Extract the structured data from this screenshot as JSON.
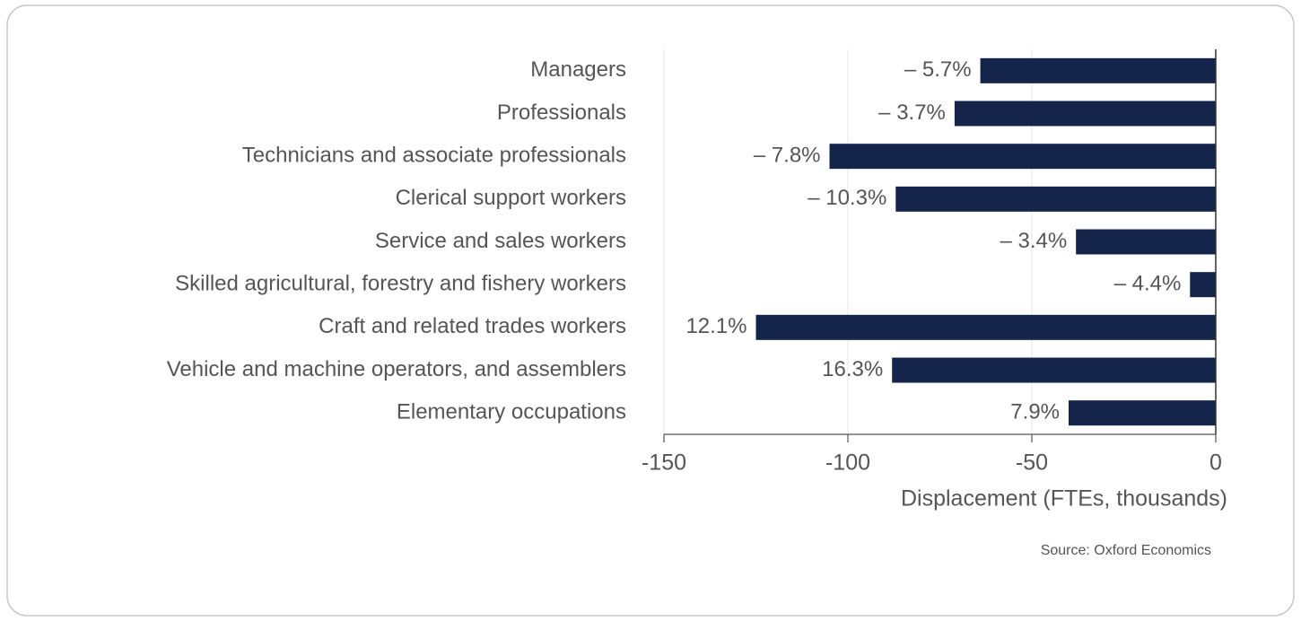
{
  "chart_data": {
    "type": "barh",
    "categories": [
      "Managers",
      "Professionals",
      "Technicians and associate professionals",
      "Clerical support workers",
      "Service and sales workers",
      "Skilled agricultural, forestry and fishery workers",
      "Craft and related trades workers",
      "Vehicle and machine operators, and assemblers",
      "Elementary occupations"
    ],
    "values": [
      -64,
      -71,
      -105,
      -87,
      -38,
      -7,
      -125,
      -88,
      -40
    ],
    "labels": [
      "– 5.7%",
      "– 3.7%",
      "– 7.8%",
      "– 10.3%",
      "– 3.4%",
      "– 4.4%",
      "12.1%",
      "16.3%",
      "7.9%"
    ],
    "color": "#14244b",
    "xlim": [
      -150,
      0
    ],
    "xticks": [
      -150,
      -100,
      -50,
      0
    ],
    "xlabel": "Displacement (FTEs, thousands)",
    "source": "Source: Oxford Economics",
    "grid": true
  }
}
